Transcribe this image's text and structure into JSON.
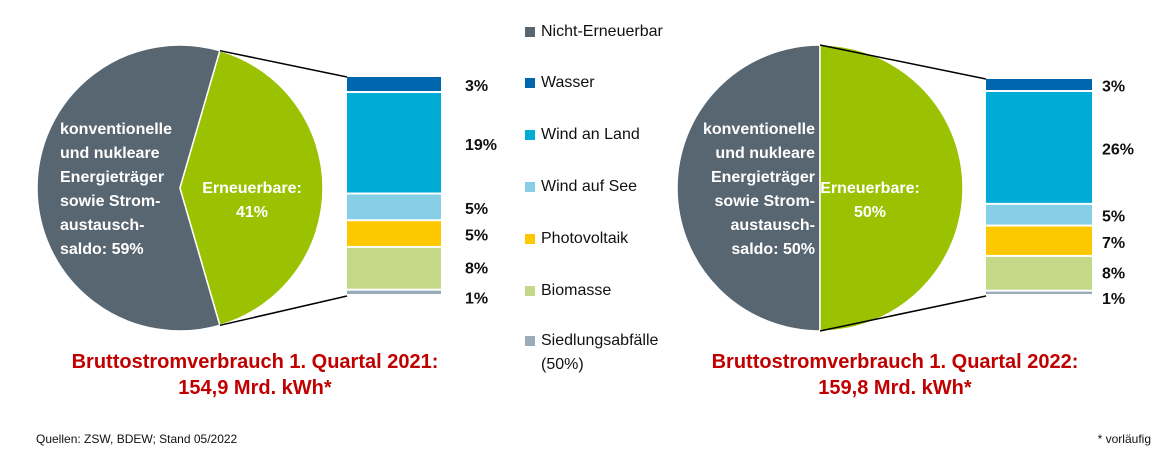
{
  "chart_data": [
    {
      "type": "pie-of-bar",
      "title": [
        "Bruttostromverbrauch 1. Quartal 2021:",
        "154,9 Mrd. kWh*"
      ],
      "pie": [
        {
          "name": "Nicht-Erneuerbar",
          "value": 59,
          "label_lines": [
            "konventionelle",
            "und nukleare",
            "Energieträger",
            "sowie Strom-",
            "austausch-",
            "saldo: 59%"
          ]
        },
        {
          "name": "Erneuerbare",
          "value": 41,
          "label_lines": [
            "Erneuerbare:",
            "41%"
          ]
        }
      ],
      "bar": [
        {
          "name": "Wasser",
          "value": 3,
          "label": "3%"
        },
        {
          "name": "Wind an Land",
          "value": 19,
          "label": "19%"
        },
        {
          "name": "Wind auf See",
          "value": 5,
          "label": "5%"
        },
        {
          "name": "Photovoltaik",
          "value": 5,
          "label": "5%"
        },
        {
          "name": "Biomasse",
          "value": 8,
          "label": "8%"
        },
        {
          "name": "Siedlungsabfälle (50%)",
          "value": 1,
          "label": "1%"
        }
      ]
    },
    {
      "type": "pie-of-bar",
      "title": [
        "Bruttostromverbrauch 1. Quartal 2022:",
        "159,8 Mrd. kWh*"
      ],
      "pie": [
        {
          "name": "Nicht-Erneuerbar",
          "value": 50,
          "label_lines": [
            "konventionelle",
            "und nukleare",
            "Energieträger",
            "sowie Strom-",
            "austausch-",
            "saldo: 50%"
          ]
        },
        {
          "name": "Erneuerbare",
          "value": 50,
          "label_lines": [
            "Erneuerbare:",
            "50%"
          ]
        }
      ],
      "bar": [
        {
          "name": "Wasser",
          "value": 3,
          "label": "3%"
        },
        {
          "name": "Wind an Land",
          "value": 26,
          "label": "26%"
        },
        {
          "name": "Wind auf See",
          "value": 5,
          "label": "5%"
        },
        {
          "name": "Photovoltaik",
          "value": 7,
          "label": "7%"
        },
        {
          "name": "Biomasse",
          "value": 8,
          "label": "8%"
        },
        {
          "name": "Siedlungsabfälle (50%)",
          "value": 1,
          "label": "1%"
        }
      ]
    }
  ],
  "legend": [
    {
      "label": "Nicht-Erneuerbar",
      "color": "#586672"
    },
    {
      "label": "Wasser",
      "color": "#0066ad"
    },
    {
      "label": "Wind an Land",
      "color": "#00acd6"
    },
    {
      "label": "Wind auf See",
      "color": "#86cfe7"
    },
    {
      "label": "Photovoltaik",
      "color": "#fdc800"
    },
    {
      "label": "Biomasse",
      "color": "#c4d987"
    },
    {
      "label": "Siedlungsabfälle",
      "label2": "(50%)",
      "color": "#9aabb9"
    }
  ],
  "colors": {
    "renewable": "#9bc200",
    "nonrenewable": "#586672",
    "title": "#c00000"
  },
  "footer": {
    "source": "Quellen: ZSW, BDEW; Stand 05/2022",
    "note": "* vorläufig"
  }
}
